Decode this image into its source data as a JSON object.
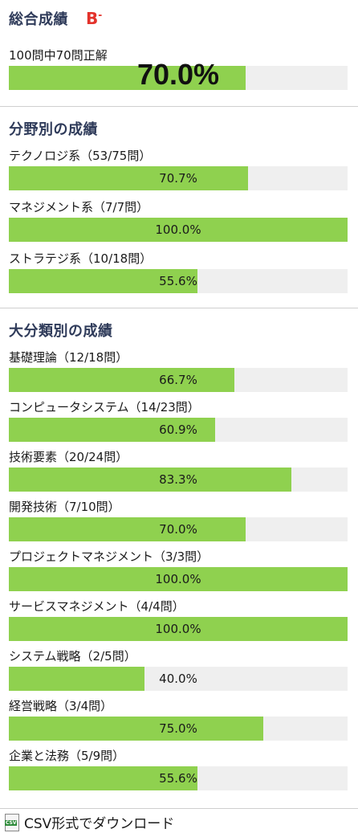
{
  "overall": {
    "title": "総合成績",
    "grade": "B",
    "grade_suffix": "-",
    "summary": "100問中70問正解",
    "percent_text": "70.0%",
    "percent": 70.0
  },
  "field": {
    "title": "分野別の成績",
    "items": [
      {
        "label": "テクノロジ系（53/75問）",
        "percent_text": "70.7%",
        "percent": 70.7
      },
      {
        "label": "マネジメント系（7/7問）",
        "percent_text": "100.0%",
        "percent": 100.0
      },
      {
        "label": "ストラテジ系（10/18問）",
        "percent_text": "55.6%",
        "percent": 55.6
      }
    ]
  },
  "major": {
    "title": "大分類別の成績",
    "items": [
      {
        "label": "基礎理論（12/18問）",
        "percent_text": "66.7%",
        "percent": 66.7
      },
      {
        "label": "コンピュータシステム（14/23問）",
        "percent_text": "60.9%",
        "percent": 60.9
      },
      {
        "label": "技術要素（20/24問）",
        "percent_text": "83.3%",
        "percent": 83.3
      },
      {
        "label": "開発技術（7/10問）",
        "percent_text": "70.0%",
        "percent": 70.0
      },
      {
        "label": "プロジェクトマネジメント（3/3問）",
        "percent_text": "100.0%",
        "percent": 100.0
      },
      {
        "label": "サービスマネジメント（4/4問）",
        "percent_text": "100.0%",
        "percent": 100.0
      },
      {
        "label": "システム戦略（2/5問）",
        "percent_text": "40.0%",
        "percent": 40.0
      },
      {
        "label": "経営戦略（3/4問）",
        "percent_text": "75.0%",
        "percent": 75.0
      },
      {
        "label": "企業と法務（5/9問）",
        "percent_text": "55.6%",
        "percent": 55.6
      }
    ]
  },
  "csv": {
    "icon": "csv-file-icon",
    "icon_text": "CSV",
    "label": "CSV形式でダウンロード"
  },
  "colors": {
    "bar_fill": "#8fd14f",
    "bar_track": "#efefef",
    "section_title": "#2f3b5a",
    "grade": "#e3322b"
  }
}
